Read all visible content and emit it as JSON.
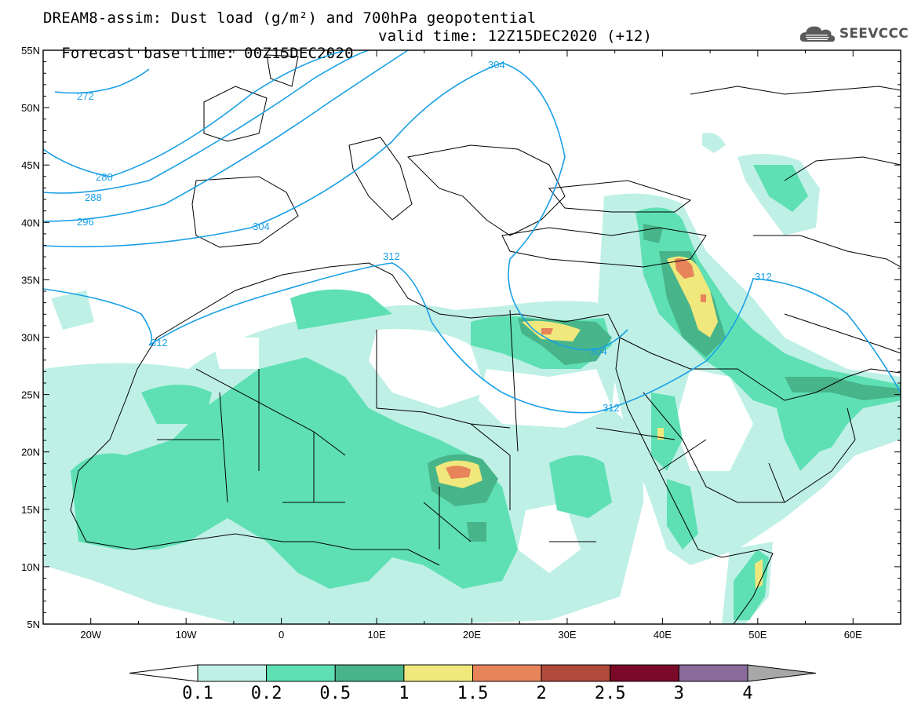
{
  "header": {
    "title_line1": "DREAM8-assim: Dust load (g/m²) and 700hPa geopotential",
    "title_line2_base": "Forecast base time: 00Z15DEC2020",
    "title_line2_valid": "valid time: 12Z15DEC2020 (+12)",
    "logo_text": "SEEVCCC",
    "logo_icon": "cloud-logo-icon"
  },
  "map": {
    "lon_range": [
      -25,
      65
    ],
    "lat_range": [
      5,
      55
    ],
    "lon_ticks": [
      {
        "value": -20,
        "label": "20W"
      },
      {
        "value": -10,
        "label": "10W"
      },
      {
        "value": 0,
        "label": "0"
      },
      {
        "value": 10,
        "label": "10E"
      },
      {
        "value": 20,
        "label": "20E"
      },
      {
        "value": 30,
        "label": "30E"
      },
      {
        "value": 40,
        "label": "40E"
      },
      {
        "value": 50,
        "label": "50E"
      },
      {
        "value": 60,
        "label": "60E"
      }
    ],
    "lat_ticks": [
      {
        "value": 55,
        "label": "55N"
      },
      {
        "value": 50,
        "label": "50N"
      },
      {
        "value": 45,
        "label": "45N"
      },
      {
        "value": 40,
        "label": "40N"
      },
      {
        "value": 35,
        "label": "35N"
      },
      {
        "value": 30,
        "label": "30N"
      },
      {
        "value": 25,
        "label": "25N"
      },
      {
        "value": 20,
        "label": "20N"
      },
      {
        "value": 15,
        "label": "15N"
      },
      {
        "value": 10,
        "label": "10N"
      },
      {
        "value": 5,
        "label": "5N"
      }
    ],
    "contour_labels": [
      "272",
      "280",
      "288",
      "296",
      "304",
      "304",
      "304",
      "312",
      "312",
      "312",
      "312"
    ],
    "contour_color": "#1aa0e6"
  },
  "colorbar": {
    "labels": [
      "0.1",
      "0.2",
      "0.5",
      "1",
      "1.5",
      "2",
      "2.5",
      "3",
      "4"
    ],
    "colors": [
      "#bff0e6",
      "#5ee0b4",
      "#48b48a",
      "#f0e87c",
      "#e8845a",
      "#b04a3a",
      "#7a0a28",
      "#8a6a9a"
    ],
    "over_color": "#a8a8a8",
    "under_color": "#ffffff"
  }
}
